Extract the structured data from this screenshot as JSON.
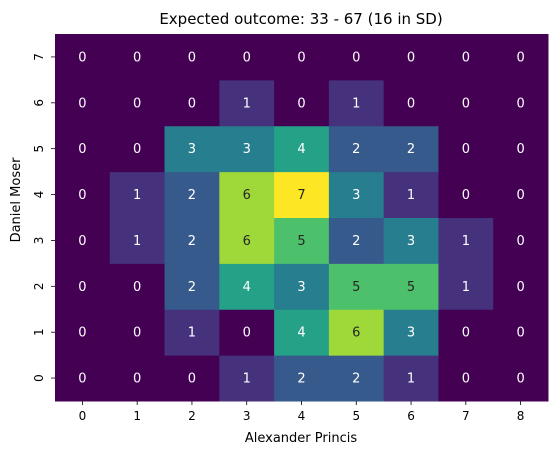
{
  "chart_data": {
    "type": "heatmap",
    "title": "Expected outcome: 33 - 67 (16 in SD)",
    "xlabel": "Alexander Princis",
    "ylabel": "Daniel Moser",
    "x": [
      "0",
      "1",
      "2",
      "3",
      "4",
      "5",
      "6",
      "7",
      "8"
    ],
    "y": [
      "0",
      "1",
      "2",
      "3",
      "4",
      "5",
      "6",
      "7"
    ],
    "values": [
      [
        0,
        0,
        0,
        1,
        2,
        2,
        1,
        0,
        0
      ],
      [
        0,
        0,
        1,
        0,
        4,
        6,
        3,
        0,
        0
      ],
      [
        0,
        0,
        2,
        4,
        3,
        5,
        5,
        1,
        0
      ],
      [
        0,
        1,
        2,
        6,
        5,
        2,
        3,
        1,
        0
      ],
      [
        0,
        1,
        2,
        6,
        7,
        3,
        1,
        0,
        0
      ],
      [
        0,
        0,
        3,
        3,
        4,
        2,
        2,
        0,
        0
      ],
      [
        0,
        0,
        0,
        1,
        0,
        1,
        0,
        0,
        0
      ],
      [
        0,
        0,
        0,
        0,
        0,
        0,
        0,
        0,
        0
      ]
    ],
    "colormap": "viridis",
    "vmin": 0,
    "vmax": 7,
    "annotate": true,
    "grid": false,
    "legend": "none"
  }
}
